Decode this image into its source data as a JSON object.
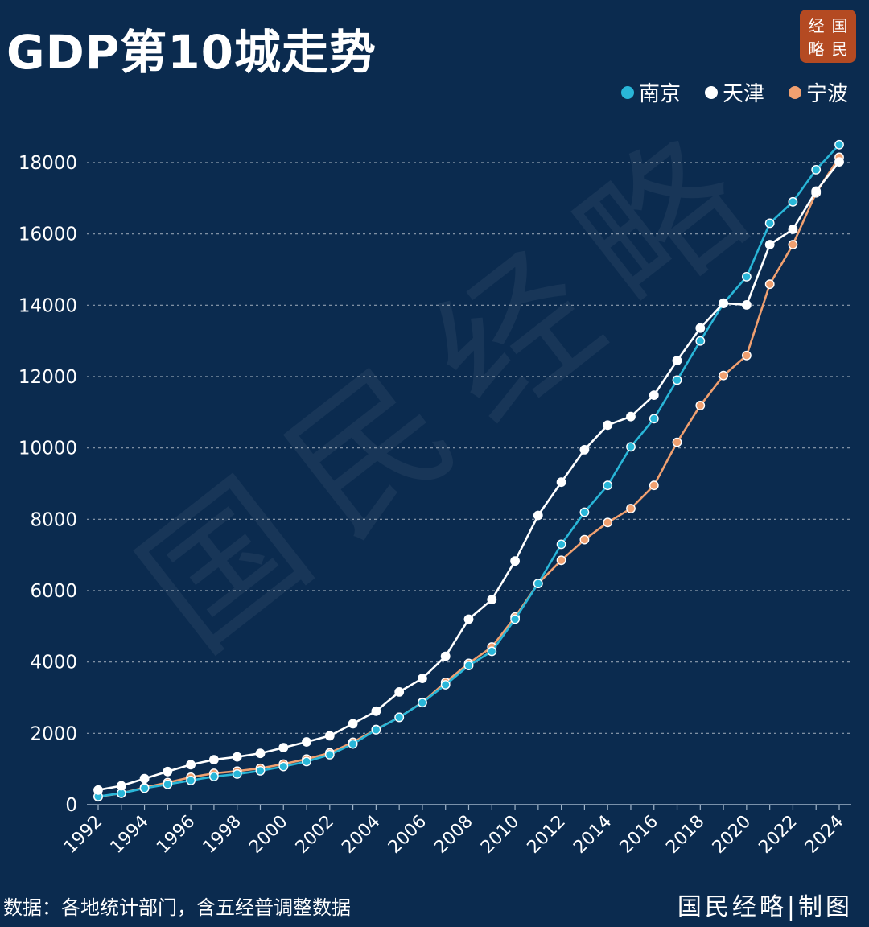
{
  "title": "GDP第10城走势",
  "logo": {
    "chars": [
      "经",
      "国",
      "略",
      "民"
    ]
  },
  "watermark": "国民经略",
  "source_note": "数据：各地统计部门，含五经普调整数据",
  "credit": "国民经略|制图",
  "colors": {
    "nanjing": "#29b6d8",
    "tianjin": "#ffffff",
    "ningbo": "#f0a070",
    "background": "#0b2b4f"
  },
  "chart_data": {
    "type": "line",
    "title": "GDP第10城走势",
    "xlabel": "",
    "ylabel": "",
    "ylim": [
      0,
      18000
    ],
    "yticks": [
      "0",
      "2000",
      "4000",
      "6000",
      "8000",
      "10000",
      "12000",
      "14000",
      "16000",
      "18000"
    ],
    "xticks": [
      "1992",
      "1994",
      "1996",
      "1998",
      "2000",
      "2002",
      "2004",
      "2006",
      "2008",
      "2010",
      "2012",
      "2014",
      "2016",
      "2018",
      "2020",
      "2022",
      "2024"
    ],
    "grid": true,
    "legend_position": "top-right",
    "x": [
      1992,
      1993,
      1994,
      1995,
      1996,
      1997,
      1998,
      1999,
      2000,
      2001,
      2002,
      2003,
      2004,
      2005,
      2006,
      2007,
      2008,
      2009,
      2010,
      2011,
      2012,
      2013,
      2014,
      2015,
      2016,
      2017,
      2018,
      2019,
      2020,
      2021,
      2022,
      2023,
      2024
    ],
    "series": [
      {
        "key": "nanjing",
        "name": "南京",
        "values": [
          230,
          320,
          460,
          570,
          680,
          790,
          860,
          950,
          1070,
          1210,
          1400,
          1700,
          2100,
          2450,
          2860,
          3360,
          3900,
          4300,
          5200,
          6200,
          7300,
          8200,
          8950,
          10030,
          10820,
          11900,
          13000,
          14050,
          14800,
          16300,
          16900,
          17800,
          18500
        ]
      },
      {
        "key": "tianjin",
        "name": "天津",
        "values": [
          410,
          530,
          730,
          930,
          1120,
          1260,
          1340,
          1440,
          1600,
          1760,
          1930,
          2270,
          2620,
          3160,
          3540,
          4160,
          5200,
          5750,
          6830,
          8110,
          9040,
          9950,
          10640,
          10880,
          11480,
          12450,
          13360,
          14060,
          14010,
          15700,
          16130,
          17200,
          18020
        ]
      },
      {
        "key": "ningbo",
        "name": "宁波",
        "values": [
          220,
          320,
          480,
          620,
          770,
          880,
          940,
          1020,
          1140,
          1280,
          1450,
          1750,
          2110,
          2450,
          2870,
          3430,
          3960,
          4420,
          5260,
          6200,
          6850,
          7430,
          7910,
          8300,
          8950,
          10160,
          11190,
          12030,
          12590,
          14590,
          15700,
          17150,
          18150
        ]
      }
    ]
  }
}
